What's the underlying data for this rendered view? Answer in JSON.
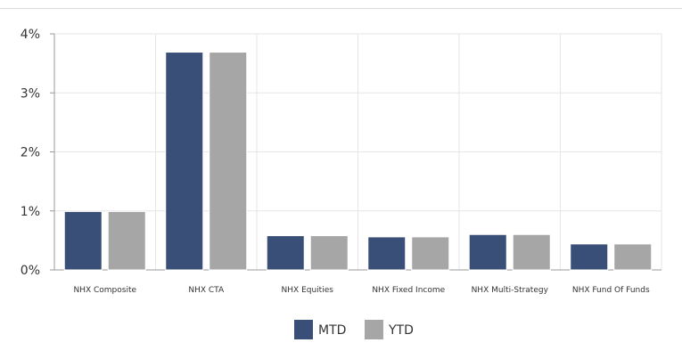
{
  "chart_data": {
    "type": "bar",
    "title": "",
    "xlabel": "",
    "ylabel": "",
    "categories": [
      "NHX Composite",
      "NHX CTA",
      "NHX Equities",
      "NHX Fixed Income",
      "NHX Multi-Strategy",
      "NHX Fund Of Funds"
    ],
    "series": [
      {
        "name": "MTD",
        "values": [
          0.99,
          3.69,
          0.58,
          0.56,
          0.6,
          0.44
        ],
        "color": "#3a4f78"
      },
      {
        "name": "YTD",
        "values": [
          0.99,
          3.69,
          0.58,
          0.56,
          0.6,
          0.44
        ],
        "color": "#a6a6a6"
      }
    ],
    "ylim": [
      0,
      4
    ],
    "yticks": [
      {
        "value": 0,
        "label": "0%"
      },
      {
        "value": 1,
        "label": "1%"
      },
      {
        "value": 2,
        "label": "2%"
      },
      {
        "value": 3,
        "label": "3%"
      },
      {
        "value": 4,
        "label": "4%"
      }
    ],
    "grid": true,
    "legend_position": "bottom"
  }
}
